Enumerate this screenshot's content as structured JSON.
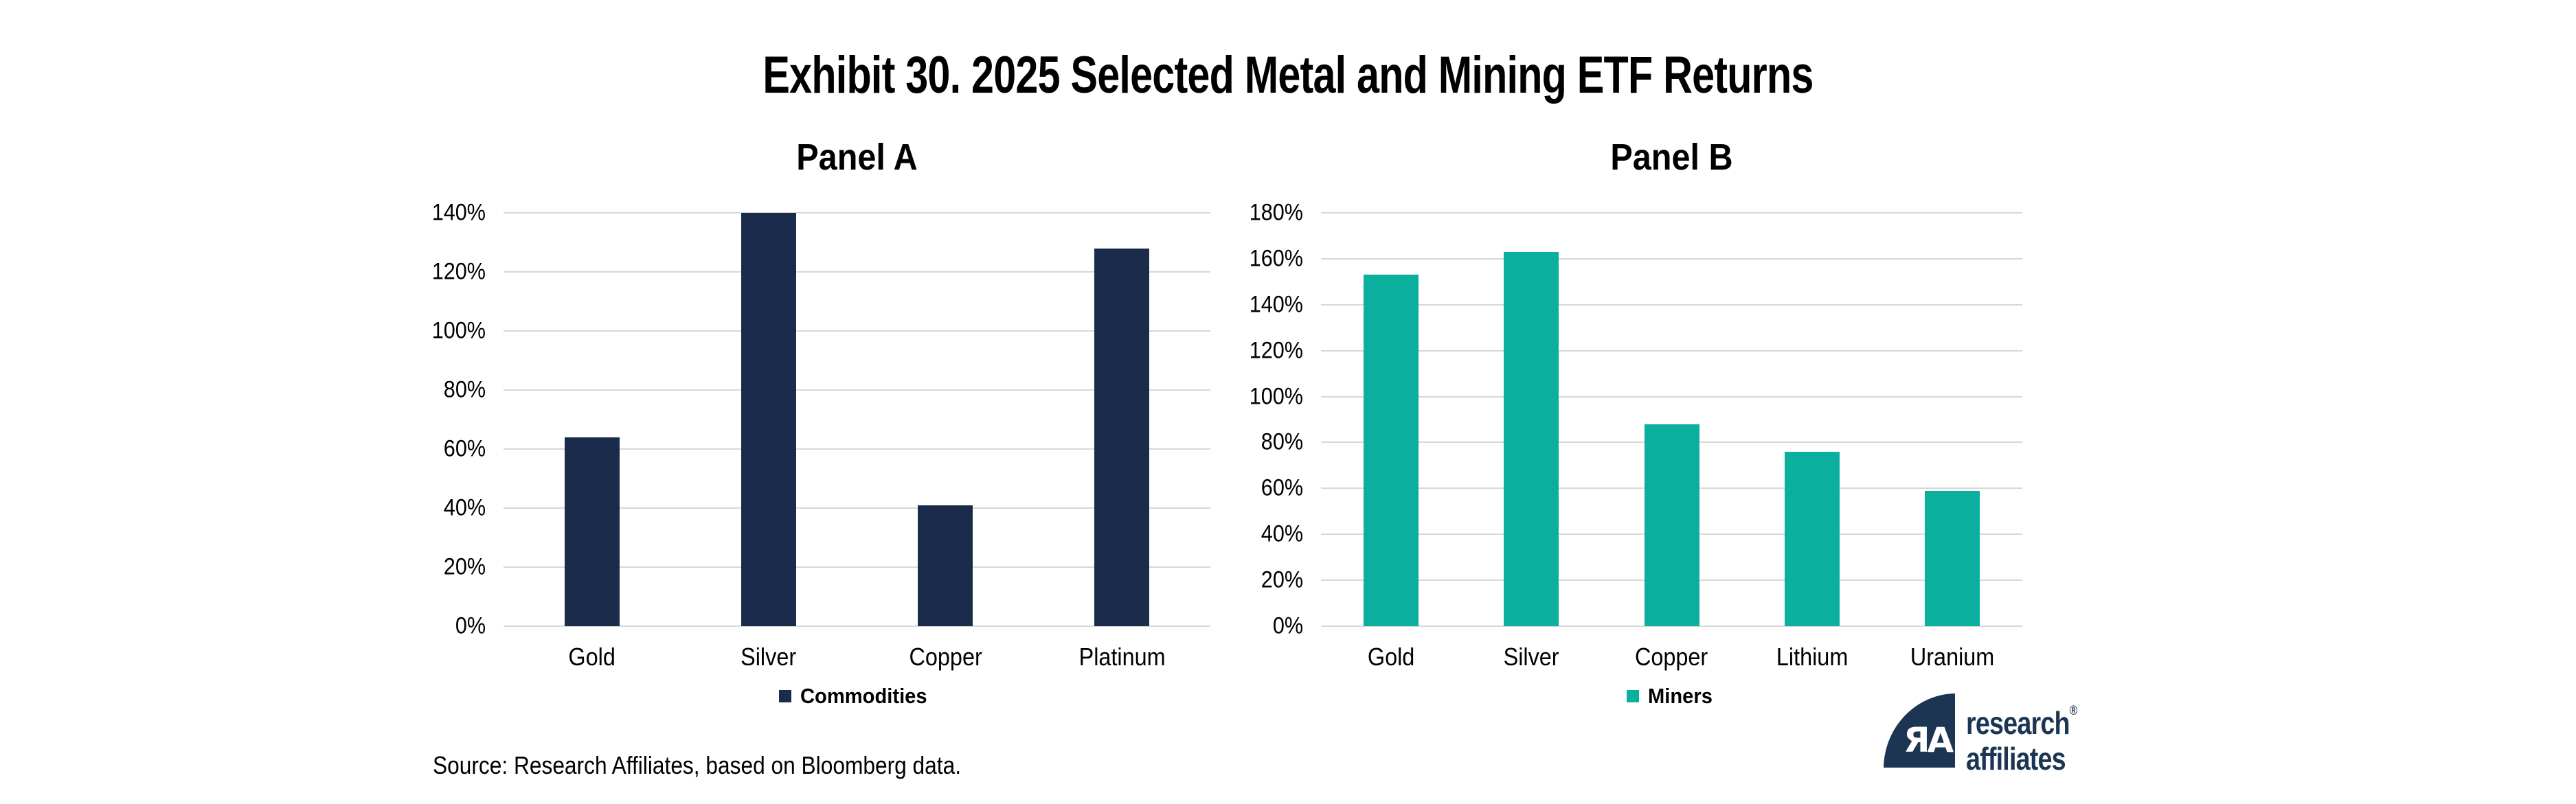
{
  "title": "Exhibit 30. 2025 Selected Metal and Mining ETF Returns",
  "source": "Source: Research Affiliates, based on Bloomberg data.",
  "logo": {
    "line1": "research",
    "line2": "affiliates",
    "registered": "®",
    "monogram": "ЯA"
  },
  "colors": {
    "navy": "#1A2B4C",
    "teal": "#0BAF9E",
    "gridline": "#D8D8D8",
    "logo_navy": "#1C3553",
    "text": "#000000",
    "background": "#FFFFFF"
  },
  "chart_data": [
    {
      "type": "bar",
      "panel_title": "Panel A",
      "categories": [
        "Gold",
        "Silver",
        "Copper",
        "Platinum"
      ],
      "series": [
        {
          "name": "Commodities",
          "color": "#1A2B4C",
          "values": [
            64,
            140,
            41,
            128
          ]
        }
      ],
      "value_unit": "percent",
      "ylim": [
        0,
        140
      ],
      "ytick_step": 20,
      "ytick_labels": [
        "0%",
        "20%",
        "40%",
        "60%",
        "80%",
        "100%",
        "120%",
        "140%"
      ],
      "grid": true,
      "legend_position": "bottom"
    },
    {
      "type": "bar",
      "panel_title": "Panel B",
      "categories": [
        "Gold",
        "Silver",
        "Copper",
        "Lithium",
        "Uranium"
      ],
      "series": [
        {
          "name": "Miners",
          "color": "#0BAF9E",
          "values": [
            153,
            163,
            88,
            76,
            59
          ]
        }
      ],
      "value_unit": "percent",
      "ylim": [
        0,
        180
      ],
      "ytick_step": 20,
      "ytick_labels": [
        "0%",
        "20%",
        "40%",
        "60%",
        "80%",
        "100%",
        "120%",
        "140%",
        "160%",
        "180%"
      ],
      "grid": true,
      "legend_position": "bottom"
    }
  ]
}
